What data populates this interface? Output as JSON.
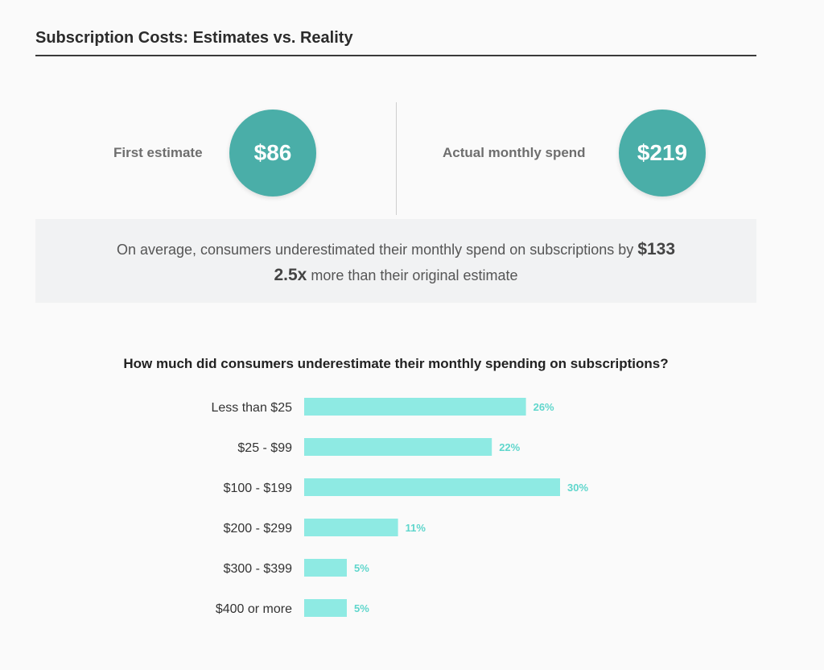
{
  "header": {
    "title": "Subscription Costs: Estimates vs. Reality"
  },
  "stats": [
    {
      "label": "First estimate",
      "value": "$86"
    },
    {
      "label": "Actual monthly spend",
      "value": "$219"
    }
  ],
  "summary": {
    "line1_text": "On average, consumers underestimated their monthly spend on subscriptions by",
    "line1_value": "$133",
    "line2_value": "2.5x",
    "line2_text": "more than their original estimate"
  },
  "colors": {
    "circle": "#4aaea8",
    "bar": "#8eeae3",
    "bar_label": "#5fd6cc"
  },
  "chart_data": {
    "type": "bar",
    "orientation": "horizontal",
    "title": "How much did consumers underestimate their monthly spending on subscriptions?",
    "categories": [
      "Less than $25",
      "$25 - $99",
      "$100 - $199",
      "$200 - $299",
      "$300 - $399",
      "$400 or more"
    ],
    "values": [
      26,
      22,
      30,
      11,
      5,
      5
    ],
    "value_labels": [
      "26%",
      "22%",
      "30%",
      "11%",
      "5%",
      "5%"
    ],
    "unit": "%",
    "grid": false
  }
}
